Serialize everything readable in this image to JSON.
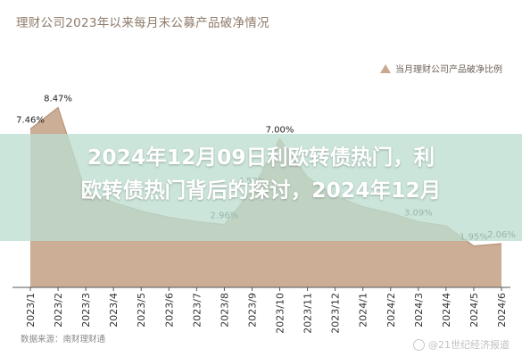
{
  "chart_data": {
    "type": "area",
    "title": "理财公司2023年以来每月末公募产品破净情况",
    "legend_label": "当月理财公司产品破净比例",
    "legend_position": "top-right",
    "unit": "%",
    "color": "#c9a98f",
    "categories": [
      "2023/1",
      "2023/2",
      "2023/3",
      "2023/4",
      "2023/5",
      "2023/6",
      "2023/7",
      "2023/8",
      "2023/9",
      "2023/10",
      "2023/11",
      "2023/12",
      "2024/1",
      "2024/2",
      "2024/3",
      "2024/4",
      "2024/5",
      "2024/6"
    ],
    "values": [
      7.46,
      8.47,
      4.5,
      4.0,
      3.6,
      3.3,
      3.1,
      2.96,
      4.58,
      7.0,
      5.2,
      4.3,
      3.8,
      3.5,
      3.09,
      2.9,
      1.95,
      2.06
    ],
    "value_labels": [
      {
        "index": 0,
        "text": "7.46%"
      },
      {
        "index": 1,
        "text": "8.47%"
      },
      {
        "index": 7,
        "text": "2.96%"
      },
      {
        "index": 8,
        "text": "4.58%"
      },
      {
        "index": 9,
        "text": "7.00%"
      },
      {
        "index": 14,
        "text": "3.09%"
      },
      {
        "index": 16,
        "text": "1.95%"
      },
      {
        "index": 17,
        "text": "2.06%"
      }
    ],
    "ylim": [
      0,
      9.5
    ],
    "grid": false
  },
  "overlay": {
    "headline_line1": "2024年12月09日利欧转债热门，利",
    "headline_line2": "欧转债热门背后的探讨，2024年12月"
  },
  "footer": {
    "source": "数据来源：南财理财通",
    "watermark": "@21世纪经济报道"
  }
}
